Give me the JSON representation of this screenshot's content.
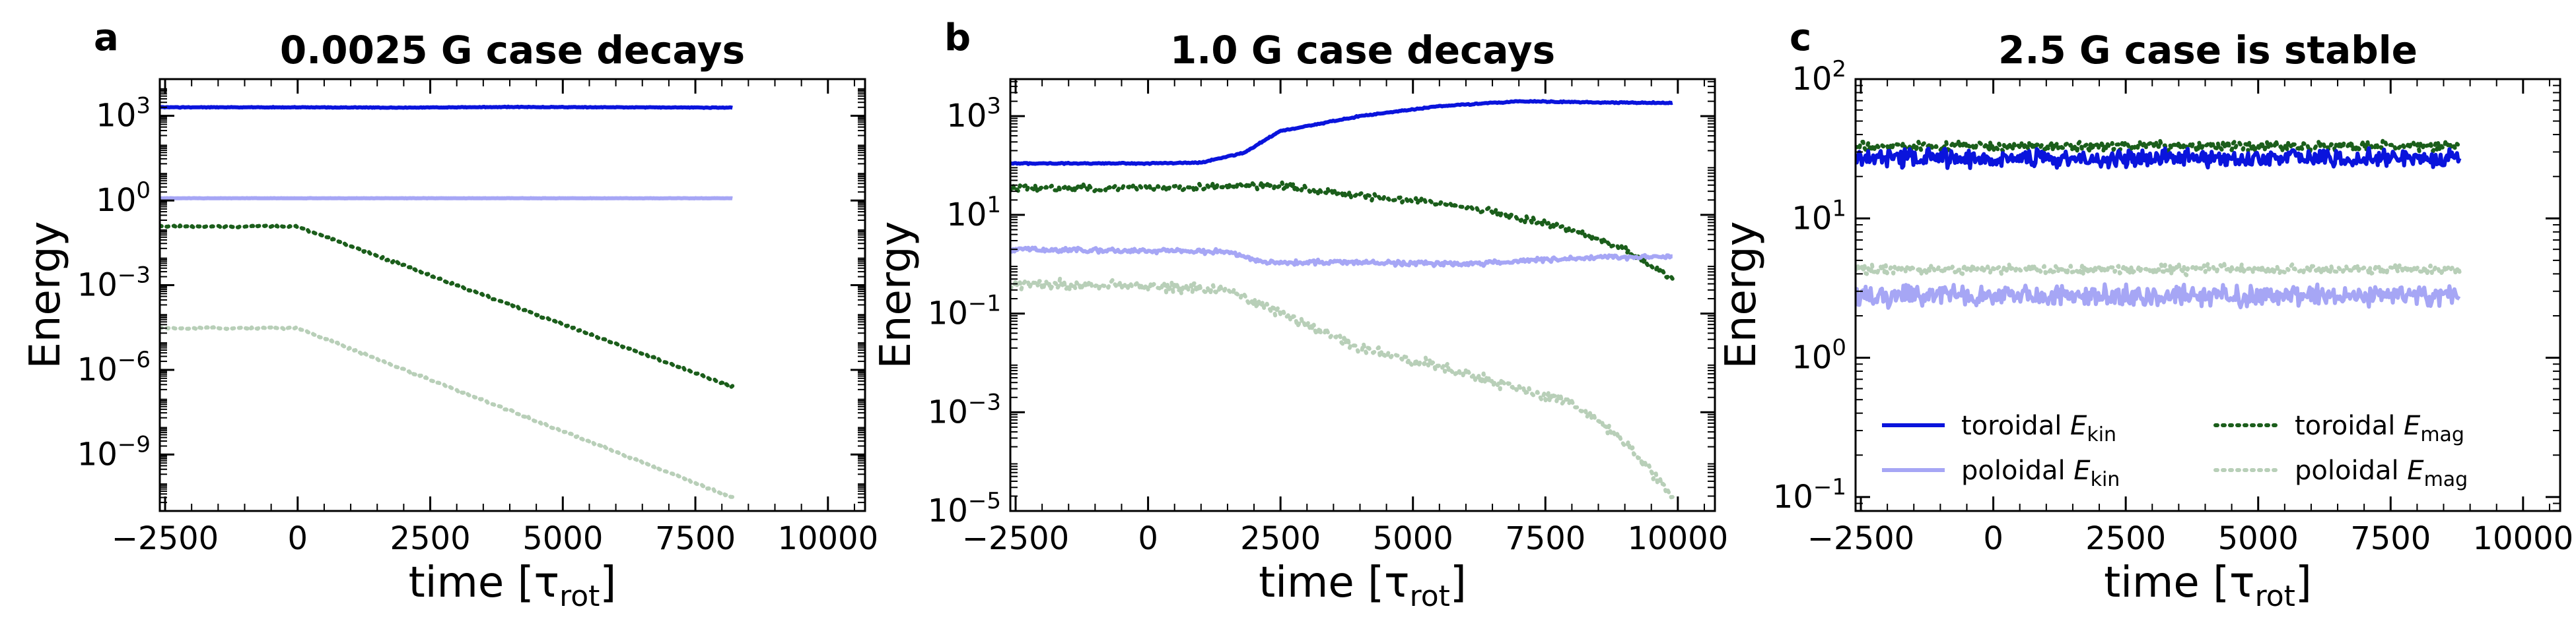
{
  "colors": {
    "toroidal_kin": "#0a14dc",
    "poloidal_kin": "#a6a6f5",
    "toroidal_mag": "#1b5e1b",
    "poloidal_mag": "#b8cfb8"
  },
  "legend": {
    "items": [
      {
        "key": "toroidal_kin",
        "prefix": "toroidal ",
        "sym": "E",
        "sub": "kin",
        "style": "solid"
      },
      {
        "key": "poloidal_kin",
        "prefix": "poloidal ",
        "sym": "E",
        "sub": "kin",
        "style": "solid"
      },
      {
        "key": "toroidal_mag",
        "prefix": "toroidal ",
        "sym": "E",
        "sub": "mag",
        "style": "dotted"
      },
      {
        "key": "poloidal_mag",
        "prefix": "poloidal ",
        "sym": "E",
        "sub": "mag",
        "style": "dotted"
      }
    ]
  },
  "chart_data": [
    {
      "letter": "a",
      "type": "line",
      "title": "0.0025 G case decays",
      "xlabel": "time [τ",
      "xlabel_sub": "rot",
      "xlabel_close": "]",
      "ylabel": "Energy",
      "yscale": "log",
      "xlim": [
        -2600,
        10700
      ],
      "ylim_exp": [
        -11,
        4.3
      ],
      "xticks": [
        -2500,
        0,
        2500,
        5000,
        7500,
        10000
      ],
      "xtick_labels": [
        "−2500",
        "0",
        "2500",
        "5000",
        "7500",
        "10000"
      ],
      "yticks_exp": [
        3,
        0,
        -3,
        -6,
        -9
      ],
      "ytick_labels": [
        {
          "base": "10",
          "exp": "3"
        },
        {
          "base": "10",
          "exp": "0"
        },
        {
          "base": "10",
          "exp": "−3"
        },
        {
          "base": "10",
          "exp": "−6"
        },
        {
          "base": "10",
          "exp": "−9"
        }
      ],
      "series": [
        {
          "key": "toroidal_kin",
          "x": [
            -2600,
            0,
            2000,
            4000,
            6000,
            8200
          ],
          "y": [
            2000,
            2000,
            1950,
            2050,
            2000,
            1950
          ],
          "noise": 0.01
        },
        {
          "key": "poloidal_kin",
          "x": [
            -2600,
            8200
          ],
          "y": [
            1.2,
            1.2
          ],
          "noise": 0.005
        },
        {
          "key": "toroidal_mag",
          "x": [
            -2600,
            0,
            8200
          ],
          "y": [
            0.12,
            0.12,
            2.5e-07
          ],
          "noise": 0.03
        },
        {
          "key": "poloidal_mag",
          "x": [
            -2600,
            0,
            8200
          ],
          "y": [
            3e-05,
            3e-05,
            3e-11
          ],
          "noise": 0.03
        }
      ],
      "legend": false
    },
    {
      "letter": "b",
      "type": "line",
      "title": "1.0 G case decays",
      "xlabel": "time [τ",
      "xlabel_sub": "rot",
      "xlabel_close": "]",
      "ylabel": "Energy",
      "yscale": "log",
      "xlim": [
        -2600,
        10700
      ],
      "ylim_exp": [
        -5,
        3.75
      ],
      "xticks": [
        -2500,
        0,
        2500,
        5000,
        7500,
        10000
      ],
      "xtick_labels": [
        "−2500",
        "0",
        "2500",
        "5000",
        "7500",
        "10000"
      ],
      "yticks_exp": [
        3,
        1,
        -1,
        -3,
        -5
      ],
      "ytick_labels": [
        {
          "base": "10",
          "exp": "3"
        },
        {
          "base": "10",
          "exp": "1"
        },
        {
          "base": "10",
          "exp": "−1"
        },
        {
          "base": "10",
          "exp": "−3"
        },
        {
          "base": "10",
          "exp": "−5"
        }
      ],
      "series": [
        {
          "key": "toroidal_kin",
          "x": [
            -2600,
            0,
            1000,
            1800,
            2500,
            4000,
            5500,
            7000,
            8500,
            9900
          ],
          "y": [
            110,
            110,
            115,
            180,
            500,
            1000,
            1600,
            2000,
            1900,
            1850
          ],
          "noise": 0.01
        },
        {
          "key": "poloidal_kin",
          "x": [
            -2600,
            1500,
            2200,
            3500,
            6000,
            8500,
            9900
          ],
          "y": [
            2.0,
            1.8,
            1.1,
            1.1,
            1.0,
            1.4,
            1.4
          ],
          "noise": 0.04
        },
        {
          "key": "toroidal_mag",
          "x": [
            -2600,
            0,
            1500,
            2400,
            4000,
            6000,
            8000,
            9000,
            9900
          ],
          "y": [
            35,
            35,
            38,
            40,
            25,
            15,
            5,
            2,
            0.5
          ],
          "noise": 0.06
        },
        {
          "key": "poloidal_mag",
          "x": [
            -2600,
            0,
            1500,
            2500,
            4000,
            6000,
            8000,
            9000,
            9900
          ],
          "y": [
            0.4,
            0.35,
            0.3,
            0.1,
            0.02,
            0.006,
            0.0015,
            0.00025,
            2e-05
          ],
          "noise": 0.09
        }
      ],
      "legend": false
    },
    {
      "letter": "c",
      "type": "line",
      "title": "2.5 G case is stable",
      "xlabel": "time [τ",
      "xlabel_sub": "rot",
      "xlabel_close": "]",
      "ylabel": "Energy",
      "yscale": "log",
      "xlim": [
        -2600,
        10700
      ],
      "ylim_exp": [
        -1.1,
        2
      ],
      "xticks": [
        -2500,
        0,
        2500,
        5000,
        7500,
        10000
      ],
      "xtick_labels": [
        "−2500",
        "0",
        "2500",
        "5000",
        "7500",
        "10000"
      ],
      "yticks_exp": [
        2,
        1,
        0,
        -1
      ],
      "ytick_labels": [
        {
          "base": "10",
          "exp": "2"
        },
        {
          "base": "10",
          "exp": "1"
        },
        {
          "base": "10",
          "exp": "0"
        },
        {
          "base": "10",
          "exp": "−1"
        }
      ],
      "series": [
        {
          "key": "toroidal_kin",
          "x": [
            -2600,
            8800
          ],
          "y": [
            27,
            27
          ],
          "noise": 0.05
        },
        {
          "key": "poloidal_kin",
          "x": [
            -2600,
            8800
          ],
          "y": [
            2.8,
            2.8
          ],
          "noise": 0.06
        },
        {
          "key": "toroidal_mag",
          "x": [
            -2600,
            8800
          ],
          "y": [
            33,
            33
          ],
          "noise": 0.03
        },
        {
          "key": "poloidal_mag",
          "x": [
            -2600,
            8800
          ],
          "y": [
            4.3,
            4.3
          ],
          "noise": 0.03
        }
      ],
      "legend": true
    }
  ]
}
